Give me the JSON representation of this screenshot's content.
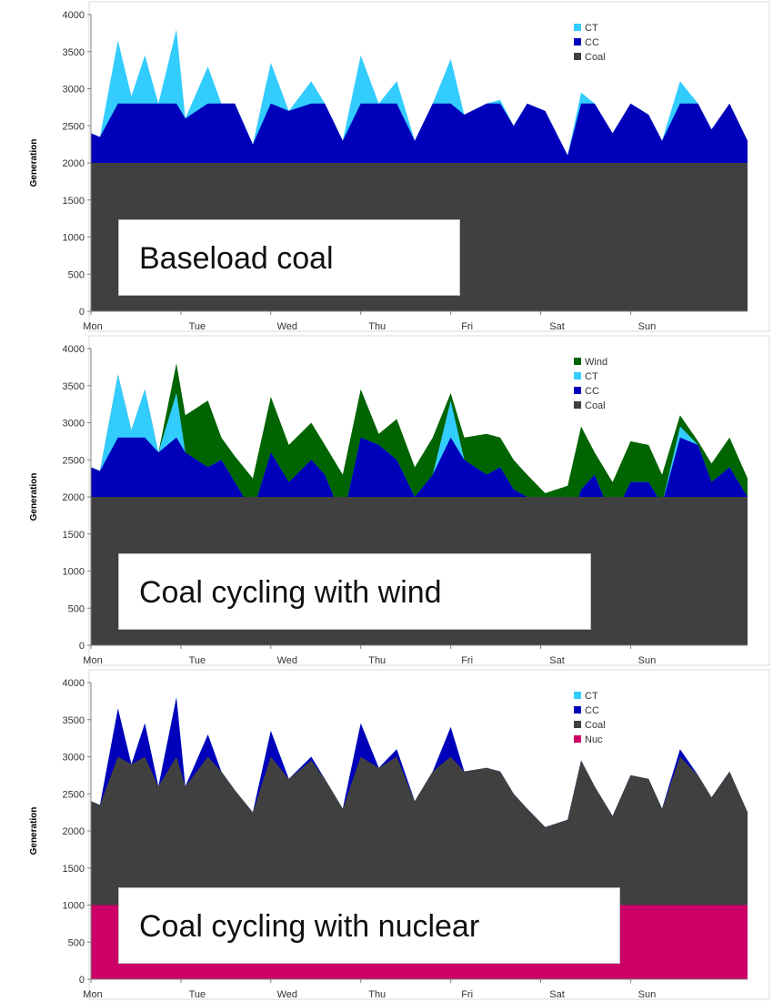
{
  "chart_data": [
    {
      "type": "area",
      "title": "",
      "caption": "Baseload coal",
      "xlabel": "",
      "ylabel": "Generation",
      "ylim": [
        0,
        4000
      ],
      "yticks": [
        0,
        500,
        1000,
        1500,
        2000,
        2500,
        3000,
        3500,
        4000
      ],
      "xticks": [
        "Mon",
        "Tue",
        "Wed",
        "Thu",
        "Fri",
        "Sat",
        "Sun"
      ],
      "stacked": true,
      "legend_position": "top-right",
      "grid": false,
      "x": [
        0,
        0.1,
        0.3,
        0.45,
        0.6,
        0.75,
        0.95,
        1.05,
        1.3,
        1.45,
        1.6,
        1.8,
        2.0,
        2.2,
        2.45,
        2.6,
        2.8,
        3.0,
        3.2,
        3.4,
        3.6,
        3.8,
        4.0,
        4.15,
        4.4,
        4.55,
        4.7,
        4.85,
        5.05,
        5.3,
        5.45,
        5.6,
        5.8,
        6.0,
        6.2,
        6.35,
        6.55,
        6.75,
        6.9,
        7.1,
        7.3
      ],
      "series": [
        {
          "name": "Coal",
          "color": "#404040",
          "values": [
            2000,
            2000,
            2000,
            2000,
            2000,
            2000,
            2000,
            2000,
            2000,
            2000,
            2000,
            2000,
            2000,
            2000,
            2000,
            2000,
            2000,
            2000,
            2000,
            2000,
            2000,
            2000,
            2000,
            2000,
            2000,
            2000,
            2000,
            2000,
            2000,
            2000,
            2000,
            2000,
            2000,
            2000,
            2000,
            2000,
            2000,
            2000,
            2000,
            2000,
            2000
          ]
        },
        {
          "name": "CC",
          "color": "#0000bb",
          "values": [
            400,
            350,
            800,
            800,
            800,
            800,
            800,
            600,
            800,
            800,
            800,
            250,
            800,
            700,
            800,
            800,
            300,
            800,
            800,
            800,
            300,
            800,
            800,
            650,
            800,
            800,
            500,
            800,
            700,
            100,
            800,
            800,
            400,
            800,
            650,
            300,
            800,
            800,
            450,
            800,
            300
          ]
        },
        {
          "name": "CT",
          "color": "#33ccff",
          "values": [
            0,
            0,
            850,
            100,
            650,
            0,
            1000,
            0,
            500,
            0,
            0,
            0,
            550,
            0,
            300,
            0,
            0,
            650,
            0,
            300,
            0,
            0,
            600,
            0,
            0,
            50,
            0,
            0,
            0,
            0,
            150,
            0,
            0,
            0,
            0,
            0,
            300,
            0,
            0,
            0,
            0
          ]
        }
      ]
    },
    {
      "type": "area",
      "title": "",
      "caption": "Coal cycling with wind",
      "xlabel": "",
      "ylabel": "Generation",
      "ylim": [
        0,
        4000
      ],
      "yticks": [
        0,
        500,
        1000,
        1500,
        2000,
        2500,
        3000,
        3500,
        4000
      ],
      "xticks": [
        "Mon",
        "Tue",
        "Wed",
        "Thu",
        "Fri",
        "Sat",
        "Sun"
      ],
      "stacked": false,
      "legend_position": "top-right",
      "grid": false,
      "x": [
        0,
        0.1,
        0.3,
        0.45,
        0.6,
        0.75,
        0.95,
        1.05,
        1.3,
        1.45,
        1.6,
        1.8,
        2.0,
        2.2,
        2.45,
        2.6,
        2.8,
        3.0,
        3.2,
        3.4,
        3.6,
        3.8,
        4.0,
        4.15,
        4.4,
        4.55,
        4.7,
        4.85,
        5.05,
        5.3,
        5.45,
        5.6,
        5.8,
        6.0,
        6.2,
        6.35,
        6.55,
        6.75,
        6.9,
        7.1,
        7.3
      ],
      "series": [
        {
          "name": "Coal",
          "color": "#404040",
          "values": [
            2000,
            2000,
            2000,
            2000,
            2000,
            2000,
            2000,
            2000,
            2000,
            2000,
            2000,
            2000,
            2000,
            2000,
            2000,
            2000,
            2000,
            2000,
            2000,
            2000,
            2000,
            2000,
            2000,
            2000,
            2000,
            2000,
            2000,
            2000,
            2000,
            2000,
            2000,
            2000,
            2000,
            2000,
            2000,
            2000,
            2000,
            2000,
            2000,
            2000,
            2000
          ]
        },
        {
          "name": "CC",
          "color": "#0000bb",
          "values": [
            2400,
            2350,
            2800,
            2800,
            2800,
            2600,
            2800,
            2600,
            2400,
            2500,
            2200,
            1800,
            2600,
            2200,
            2500,
            2300,
            1700,
            2800,
            2700,
            2500,
            2000,
            2300,
            2800,
            2500,
            2300,
            2400,
            2100,
            2000,
            1700,
            1500,
            2100,
            2300,
            1700,
            2200,
            2200,
            1900,
            2800,
            2700,
            2200,
            2400,
            2000
          ]
        },
        {
          "name": "CT",
          "color": "#33ccff",
          "values": [
            2400,
            2350,
            3650,
            2900,
            3450,
            2600,
            3400,
            2600,
            2400,
            2500,
            2200,
            1800,
            2600,
            2200,
            2500,
            2300,
            1700,
            2800,
            2700,
            2500,
            2000,
            2300,
            3300,
            2500,
            2300,
            2400,
            2100,
            2000,
            1700,
            1500,
            2100,
            2300,
            1700,
            2200,
            2200,
            1900,
            2950,
            2700,
            2200,
            2400,
            2000
          ]
        },
        {
          "name": "Wind",
          "color": "#006400",
          "values": [
            2400,
            2350,
            3650,
            2900,
            3450,
            2600,
            3800,
            3100,
            3300,
            2800,
            2550,
            2250,
            3350,
            2700,
            3000,
            2700,
            2300,
            3450,
            2850,
            3050,
            2400,
            2800,
            3400,
            2800,
            2850,
            2800,
            2500,
            2300,
            2050,
            2150,
            2950,
            2600,
            2200,
            2750,
            2700,
            2300,
            3100,
            2750,
            2450,
            2800,
            2250
          ]
        }
      ]
    },
    {
      "type": "area",
      "title": "",
      "caption": "Coal cycling with nuclear",
      "xlabel": "",
      "ylabel": "Generation",
      "ylim": [
        0,
        4000
      ],
      "yticks": [
        0,
        500,
        1000,
        1500,
        2000,
        2500,
        3000,
        3500,
        4000
      ],
      "xticks": [
        "Mon",
        "Tue",
        "Wed",
        "Thu",
        "Fri",
        "Sat",
        "Sun"
      ],
      "stacked": true,
      "legend_position": "top-right",
      "grid": false,
      "x": [
        0,
        0.1,
        0.3,
        0.45,
        0.6,
        0.75,
        0.95,
        1.05,
        1.3,
        1.45,
        1.6,
        1.8,
        2.0,
        2.2,
        2.45,
        2.6,
        2.8,
        3.0,
        3.2,
        3.4,
        3.6,
        3.8,
        4.0,
        4.15,
        4.4,
        4.55,
        4.7,
        4.85,
        5.05,
        5.3,
        5.45,
        5.6,
        5.8,
        6.0,
        6.2,
        6.35,
        6.55,
        6.75,
        6.9,
        7.1,
        7.3
      ],
      "series": [
        {
          "name": "Nuc",
          "color": "#cc0066",
          "values": [
            1000,
            1000,
            1000,
            1000,
            1000,
            1000,
            1000,
            1000,
            1000,
            1000,
            1000,
            1000,
            1000,
            1000,
            1000,
            1000,
            1000,
            1000,
            1000,
            1000,
            1000,
            1000,
            1000,
            1000,
            1000,
            1000,
            1000,
            1000,
            1000,
            1000,
            1000,
            1000,
            1000,
            1000,
            1000,
            1000,
            1000,
            1000,
            1000,
            1000,
            1000
          ]
        },
        {
          "name": "Coal",
          "color": "#404040",
          "values": [
            1400,
            1350,
            2000,
            1900,
            2000,
            1600,
            2000,
            1600,
            2000,
            1800,
            1550,
            1250,
            2000,
            1700,
            1950,
            1700,
            1300,
            2000,
            1850,
            2000,
            1400,
            1800,
            2000,
            1800,
            1850,
            1800,
            1500,
            1300,
            1050,
            1150,
            1950,
            1600,
            1200,
            1750,
            1700,
            1300,
            2000,
            1750,
            1450,
            1800,
            1250
          ]
        },
        {
          "name": "CC",
          "color": "#0000bb",
          "values": [
            0,
            0,
            650,
            0,
            450,
            0,
            800,
            0,
            300,
            0,
            0,
            0,
            350,
            0,
            50,
            0,
            0,
            450,
            0,
            100,
            0,
            0,
            400,
            0,
            0,
            0,
            0,
            0,
            0,
            0,
            0,
            0,
            0,
            0,
            0,
            0,
            100,
            0,
            0,
            0,
            0
          ]
        },
        {
          "name": "CT",
          "color": "#33ccff",
          "values": [
            0,
            0,
            0,
            0,
            0,
            0,
            0,
            0,
            0,
            0,
            0,
            0,
            0,
            0,
            0,
            0,
            0,
            0,
            0,
            0,
            0,
            0,
            0,
            0,
            0,
            0,
            0,
            0,
            0,
            0,
            0,
            0,
            0,
            0,
            0,
            0,
            0,
            0,
            0,
            0,
            0
          ]
        }
      ]
    }
  ]
}
